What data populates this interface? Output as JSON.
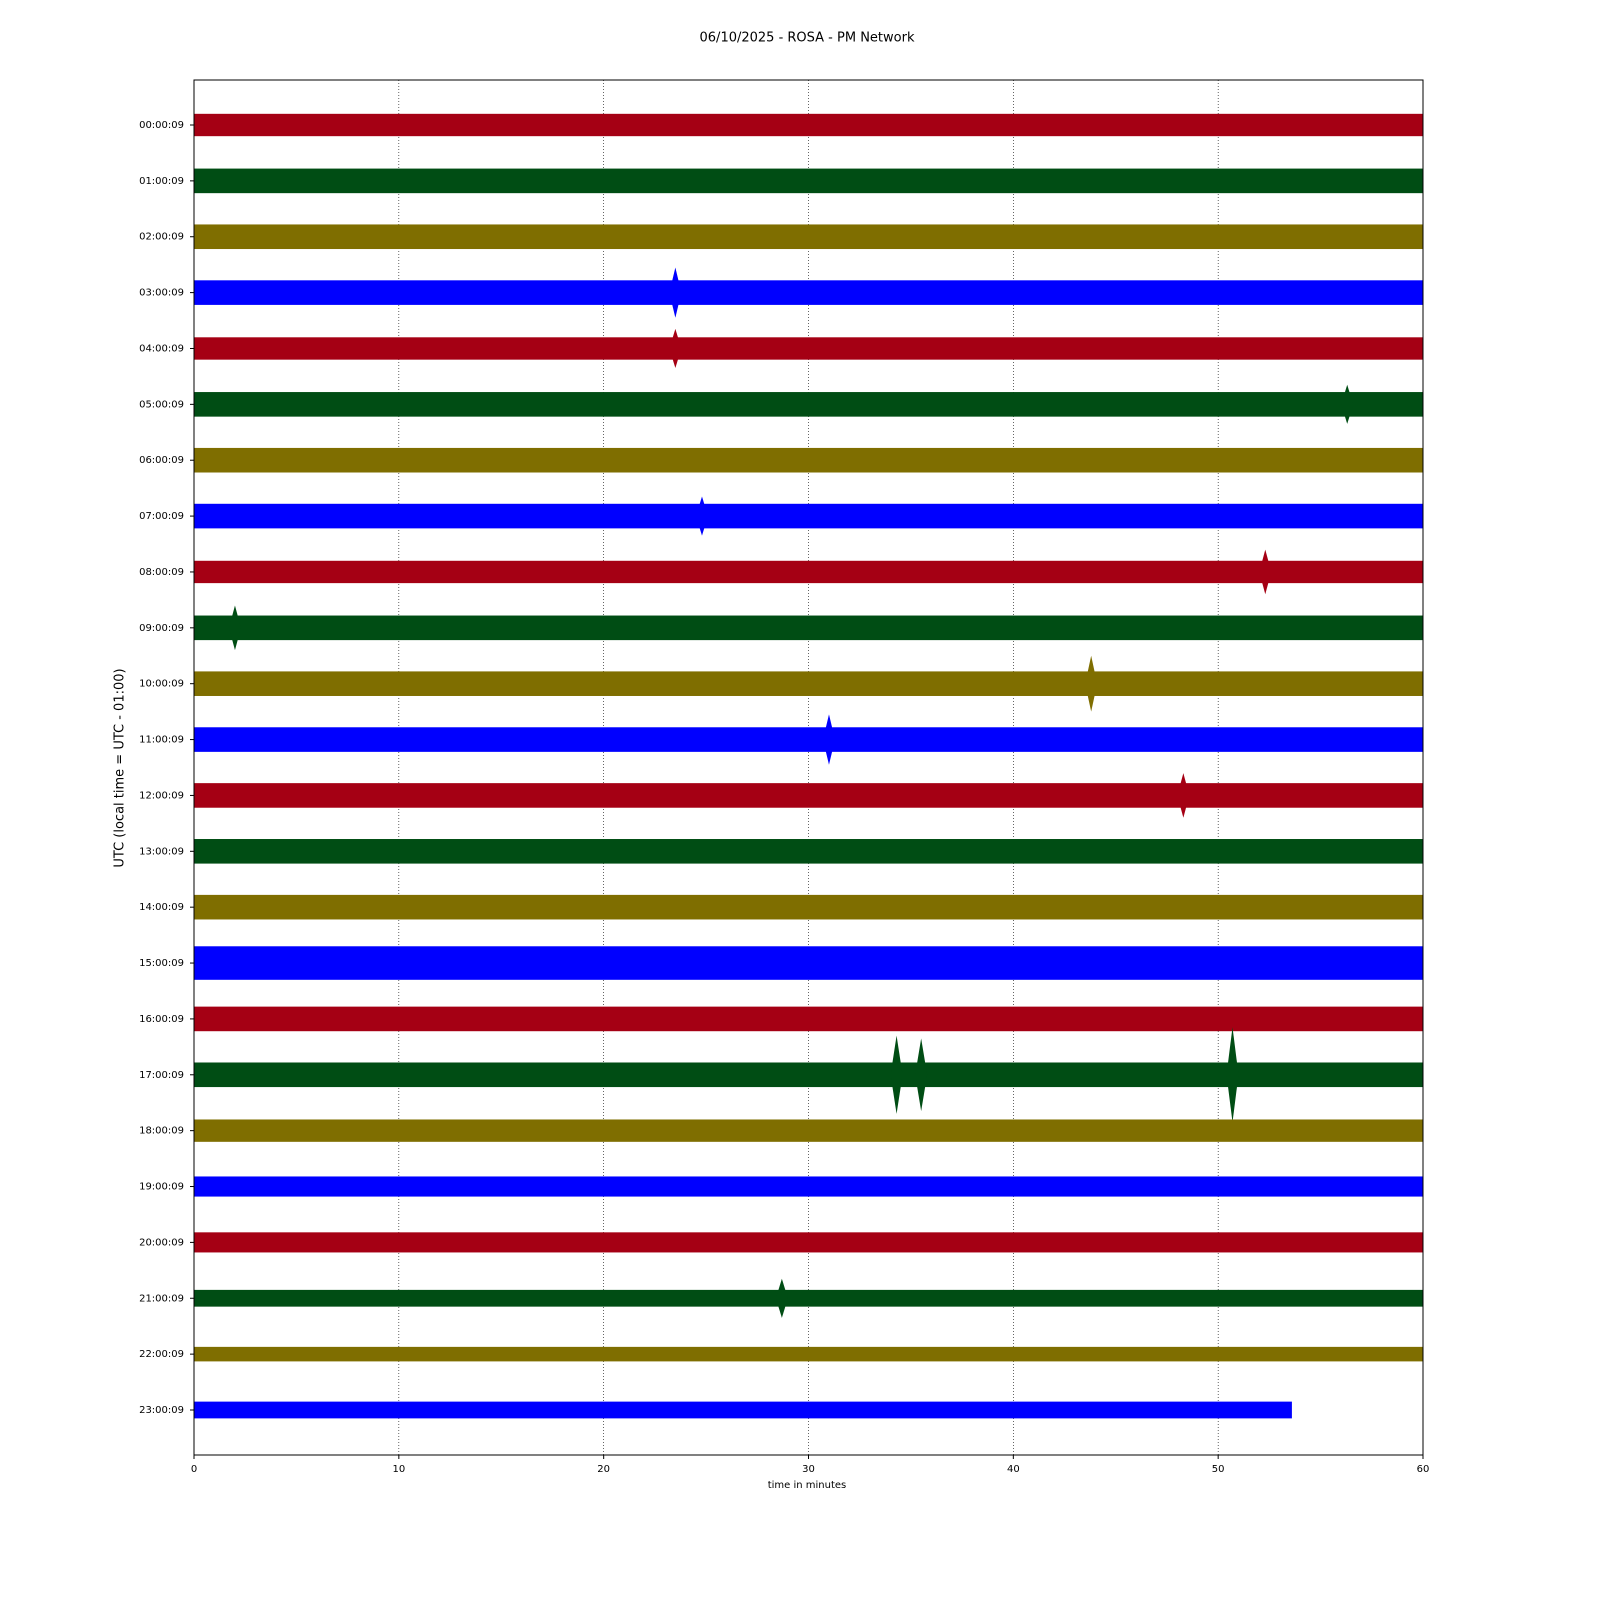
{
  "chart_data": {
    "type": "helicorder",
    "title": "06/10/2025 - ROSA - PM Network",
    "xlabel": "time in minutes",
    "ylabel": "UTC (local time = UTC - 01:00)",
    "xlim": [
      0,
      60
    ],
    "xticks": [
      0,
      10,
      20,
      30,
      40,
      50,
      60
    ],
    "grid": true,
    "series": [
      {
        "name": "00:00:09",
        "color": "#a50014",
        "span": [
          0,
          60
        ],
        "amplitude": 0.2,
        "spikes": []
      },
      {
        "name": "01:00:09",
        "color": "#004d14",
        "span": [
          0,
          60
        ],
        "amplitude": 0.22,
        "spikes": []
      },
      {
        "name": "02:00:09",
        "color": "#7f6e00",
        "span": [
          0,
          60
        ],
        "amplitude": 0.22,
        "spikes": []
      },
      {
        "name": "03:00:09",
        "color": "#0000ff",
        "span": [
          0,
          60
        ],
        "amplitude": 0.22,
        "spikes": [
          {
            "x": 23.5,
            "amplitude": 0.45
          }
        ]
      },
      {
        "name": "04:00:09",
        "color": "#a50014",
        "span": [
          0,
          60
        ],
        "amplitude": 0.2,
        "spikes": [
          {
            "x": 23.5,
            "amplitude": 0.35
          }
        ]
      },
      {
        "name": "05:00:09",
        "color": "#004d14",
        "span": [
          0,
          60
        ],
        "amplitude": 0.22,
        "spikes": [
          {
            "x": 56.3,
            "amplitude": 0.35
          }
        ]
      },
      {
        "name": "06:00:09",
        "color": "#7f6e00",
        "span": [
          0,
          60
        ],
        "amplitude": 0.22,
        "spikes": []
      },
      {
        "name": "07:00:09",
        "color": "#0000ff",
        "span": [
          0,
          60
        ],
        "amplitude": 0.22,
        "spikes": [
          {
            "x": 24.8,
            "amplitude": 0.35
          }
        ]
      },
      {
        "name": "08:00:09",
        "color": "#a50014",
        "span": [
          0,
          60
        ],
        "amplitude": 0.2,
        "spikes": [
          {
            "x": 52.3,
            "amplitude": 0.4
          }
        ]
      },
      {
        "name": "09:00:09",
        "color": "#004d14",
        "span": [
          0,
          60
        ],
        "amplitude": 0.22,
        "spikes": [
          {
            "x": 2.0,
            "amplitude": 0.4
          }
        ]
      },
      {
        "name": "10:00:09",
        "color": "#7f6e00",
        "span": [
          0,
          60
        ],
        "amplitude": 0.22,
        "spikes": [
          {
            "x": 43.8,
            "amplitude": 0.5
          }
        ]
      },
      {
        "name": "11:00:09",
        "color": "#0000ff",
        "span": [
          0,
          60
        ],
        "amplitude": 0.22,
        "spikes": [
          {
            "x": 31.0,
            "amplitude": 0.45
          }
        ]
      },
      {
        "name": "12:00:09",
        "color": "#a50014",
        "span": [
          0,
          60
        ],
        "amplitude": 0.22,
        "spikes": [
          {
            "x": 48.3,
            "amplitude": 0.4
          }
        ]
      },
      {
        "name": "13:00:09",
        "color": "#004d14",
        "span": [
          0,
          60
        ],
        "amplitude": 0.22,
        "spikes": []
      },
      {
        "name": "14:00:09",
        "color": "#7f6e00",
        "span": [
          0,
          60
        ],
        "amplitude": 0.22,
        "spikes": []
      },
      {
        "name": "15:00:09",
        "color": "#0000ff",
        "span": [
          0,
          60
        ],
        "amplitude": 0.3,
        "spikes": []
      },
      {
        "name": "16:00:09",
        "color": "#a50014",
        "span": [
          0,
          60
        ],
        "amplitude": 0.22,
        "spikes": []
      },
      {
        "name": "17:00:09",
        "color": "#004d14",
        "span": [
          0,
          60
        ],
        "amplitude": 0.22,
        "spikes": [
          {
            "x": 34.3,
            "amplitude": 0.7
          },
          {
            "x": 35.5,
            "amplitude": 0.65
          },
          {
            "x": 50.7,
            "amplitude": 0.85
          }
        ]
      },
      {
        "name": "18:00:09",
        "color": "#7f6e00",
        "span": [
          0,
          60
        ],
        "amplitude": 0.2,
        "spikes": []
      },
      {
        "name": "19:00:09",
        "color": "#0000ff",
        "span": [
          0,
          60
        ],
        "amplitude": 0.18,
        "spikes": []
      },
      {
        "name": "20:00:09",
        "color": "#a50014",
        "span": [
          0,
          60
        ],
        "amplitude": 0.18,
        "spikes": []
      },
      {
        "name": "21:00:09",
        "color": "#004d14",
        "span": [
          0,
          60
        ],
        "amplitude": 0.15,
        "spikes": [
          {
            "x": 28.7,
            "amplitude": 0.35
          }
        ]
      },
      {
        "name": "22:00:09",
        "color": "#7f6e00",
        "span": [
          0,
          60
        ],
        "amplitude": 0.13,
        "spikes": []
      },
      {
        "name": "23:00:09",
        "color": "#0000ff",
        "span": [
          0,
          53.6
        ],
        "amplitude": 0.15,
        "spikes": []
      }
    ]
  }
}
